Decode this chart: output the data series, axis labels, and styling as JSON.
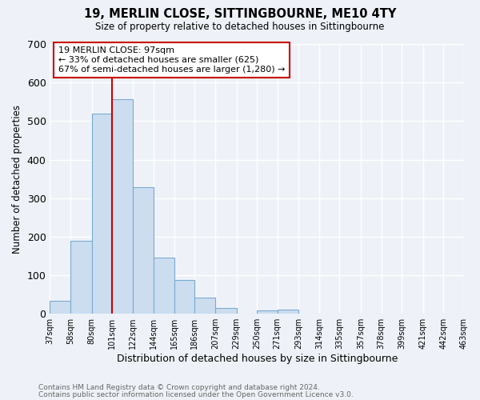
{
  "title": "19, MERLIN CLOSE, SITTINGBOURNE, ME10 4TY",
  "subtitle": "Size of property relative to detached houses in Sittingbourne",
  "xlabel": "Distribution of detached houses by size in Sittingbourne",
  "ylabel": "Number of detached properties",
  "bar_edges": [
    37,
    58,
    80,
    101,
    122,
    144,
    165,
    186,
    207,
    229,
    250,
    271,
    293,
    314,
    335,
    357,
    378,
    399,
    421,
    442,
    463
  ],
  "bar_heights": [
    33,
    190,
    519,
    557,
    328,
    145,
    87,
    42,
    15,
    0,
    8,
    10,
    0,
    0,
    0,
    0,
    0,
    0,
    0,
    0
  ],
  "bar_color": "#ccddf0",
  "bar_edgecolor": "#7aaad0",
  "vline_x": 101,
  "vline_color": "#cc0000",
  "ylim": [
    0,
    700
  ],
  "yticks": [
    0,
    100,
    200,
    300,
    400,
    500,
    600,
    700
  ],
  "annotation_title": "19 MERLIN CLOSE: 97sqm",
  "annotation_line1": "← 33% of detached houses are smaller (625)",
  "annotation_line2": "67% of semi-detached houses are larger (1,280) →",
  "tick_labels": [
    "37sqm",
    "58sqm",
    "80sqm",
    "101sqm",
    "122sqm",
    "144sqm",
    "165sqm",
    "186sqm",
    "207sqm",
    "229sqm",
    "250sqm",
    "271sqm",
    "293sqm",
    "314sqm",
    "335sqm",
    "357sqm",
    "378sqm",
    "399sqm",
    "421sqm",
    "442sqm",
    "463sqm"
  ],
  "footer1": "Contains HM Land Registry data © Crown copyright and database right 2024.",
  "footer2": "Contains public sector information licensed under the Open Government Licence v3.0.",
  "background_color": "#eef2f8",
  "plot_background": "#eef2f8",
  "grid_color": "#ffffff"
}
